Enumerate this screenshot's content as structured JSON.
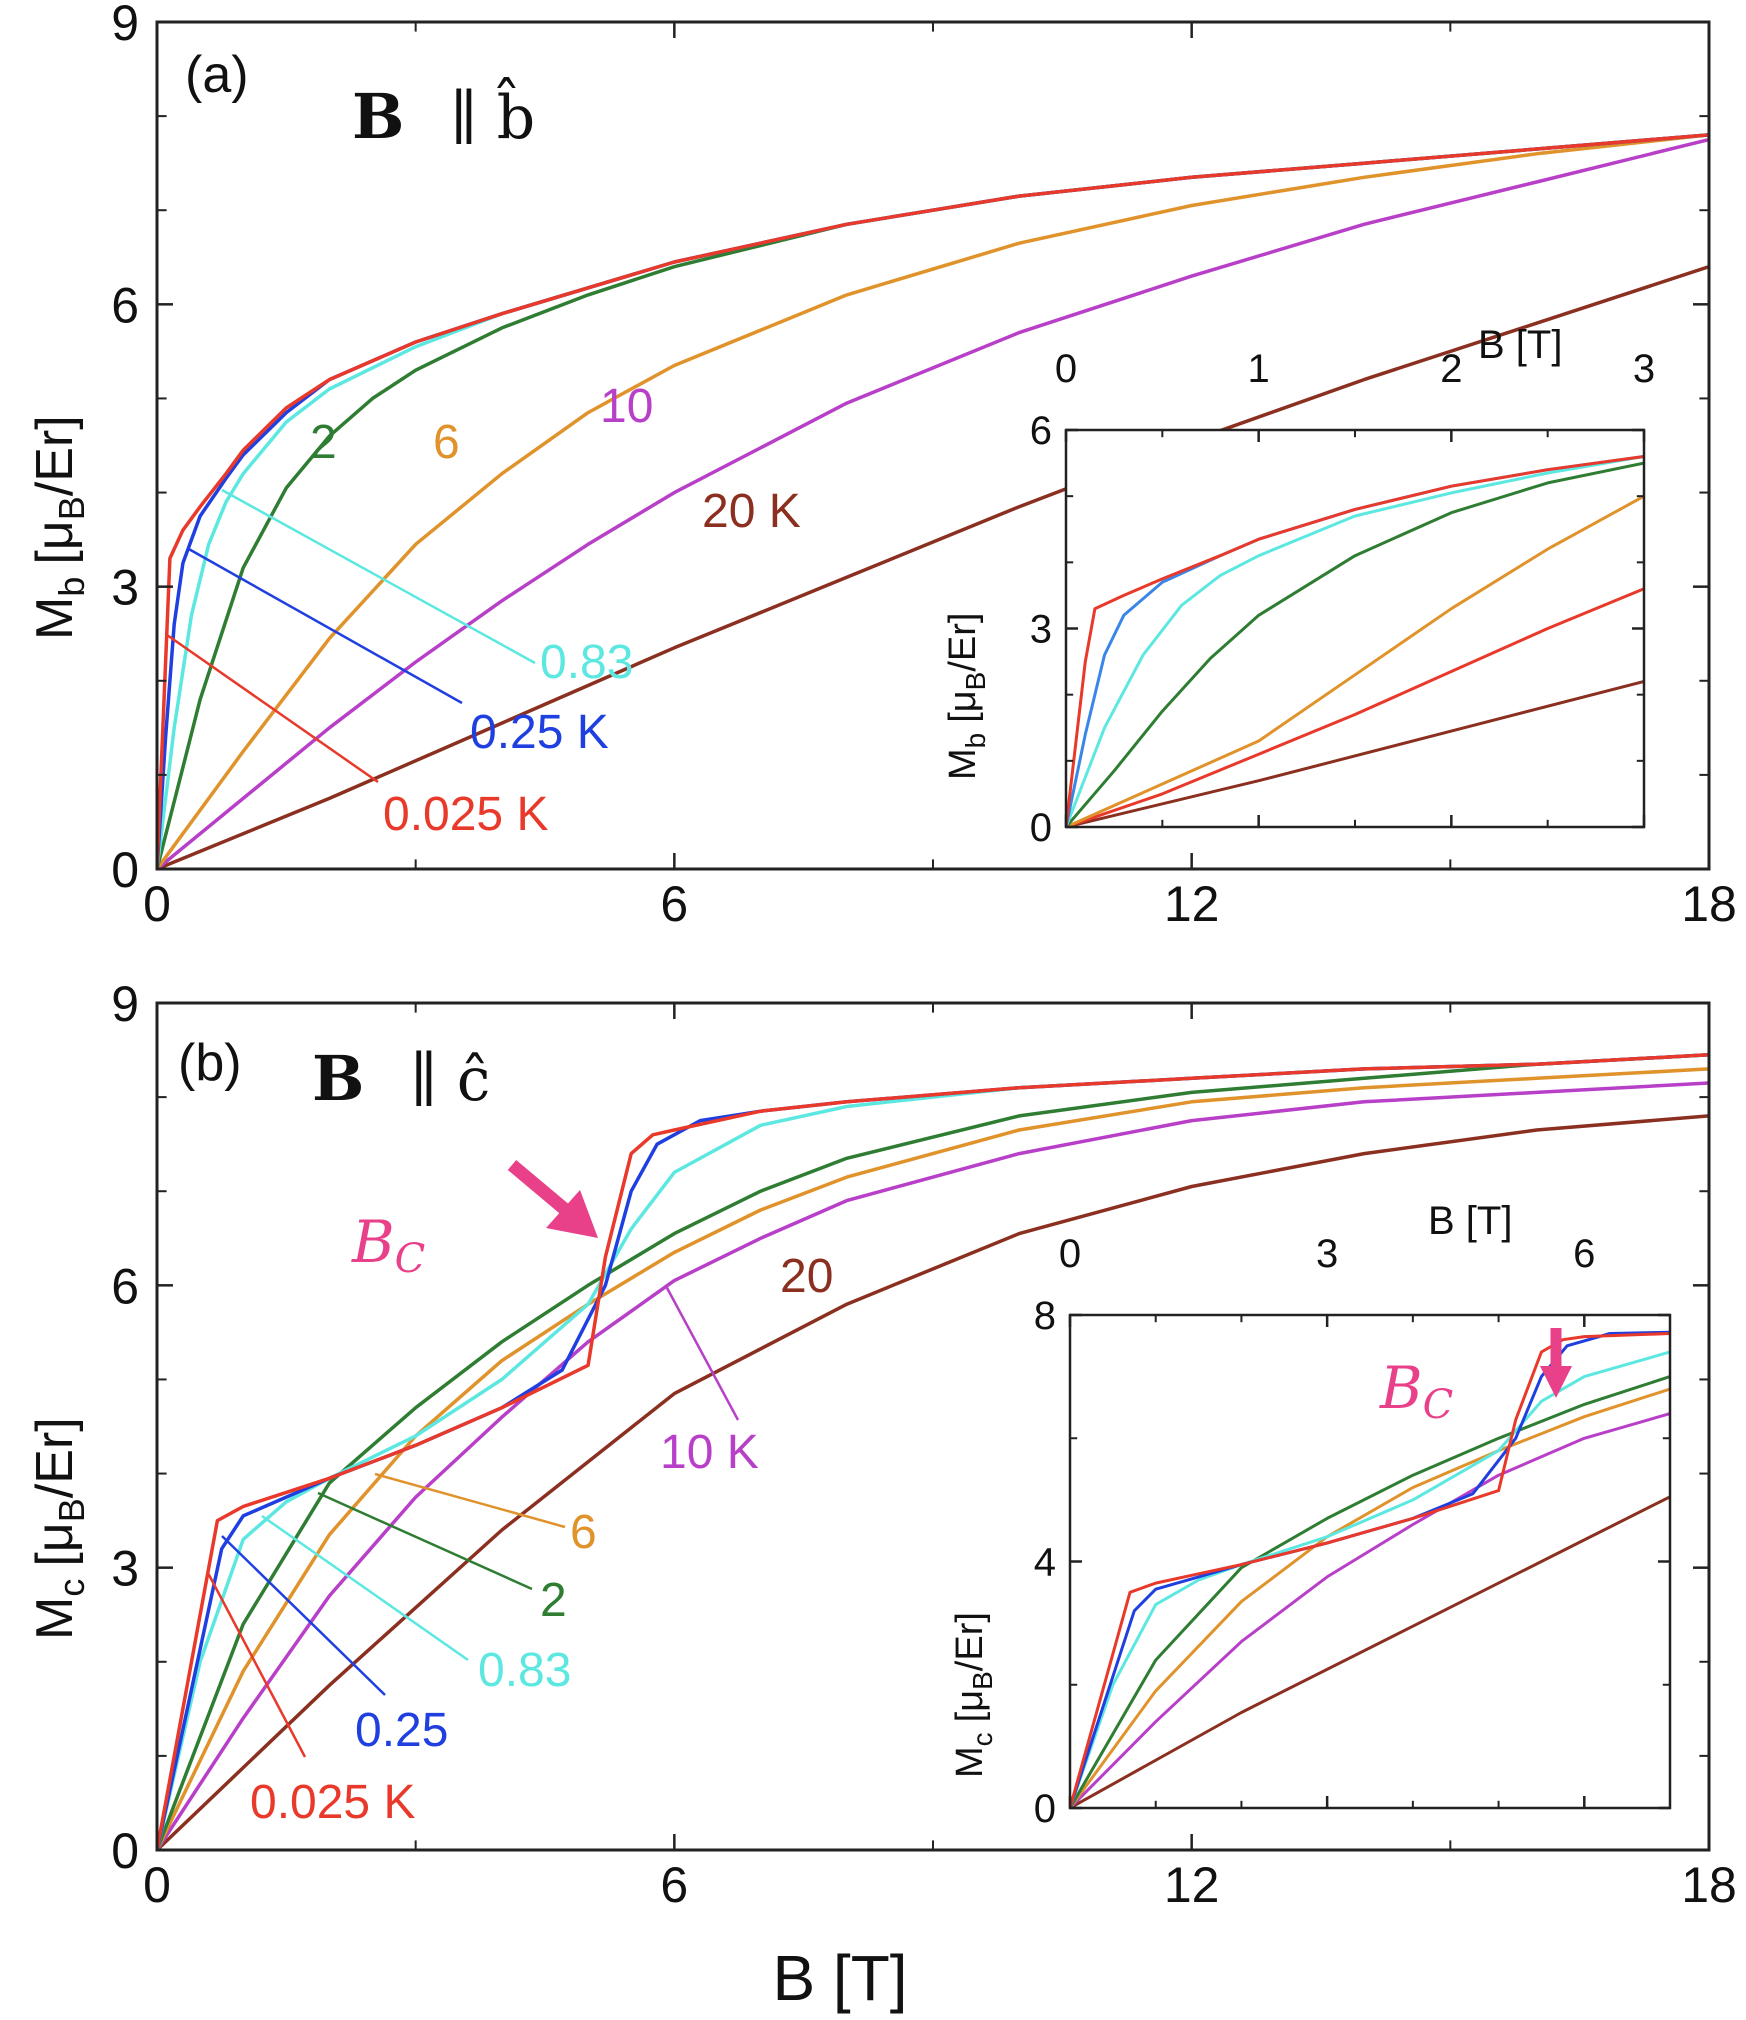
{
  "figure": {
    "x_label": "B [T]",
    "colors": {
      "0.025": "#e8392b",
      "0.25": "#1f3fe0",
      "0.83": "#5ce8e0",
      "2": "#2e7d32",
      "6": "#e0922b",
      "10": "#b83fc8",
      "20": "#8b3020",
      "arrow": "#e8418a"
    }
  },
  "chart_data": [
    {
      "type": "line",
      "panel_label": "(a)",
      "title_bold": "B",
      "title_rest": "∥ b̂",
      "xlabel": "B [T]",
      "ylabel_main": "M",
      "ylabel_sub": "b",
      "ylabel_unit": "[μ",
      "ylabel_unit_sub": "B",
      "ylabel_tail": "/Er]",
      "xlim": [
        0,
        18
      ],
      "ylim": [
        0,
        9
      ],
      "xticks": [
        "0",
        "6",
        "12",
        "18"
      ],
      "yticks": [
        "0",
        "3",
        "6",
        "9"
      ],
      "series": [
        {
          "name": "0.025 K",
          "color": "#e8392b",
          "x": [
            0,
            0.15,
            0.2,
            0.3,
            0.5,
            0.8,
            1,
            1.5,
            2,
            3,
            4,
            6,
            8,
            10,
            12,
            14,
            16,
            18
          ],
          "y": [
            0,
            3.3,
            3.4,
            3.6,
            3.85,
            4.2,
            4.45,
            4.9,
            5.2,
            5.6,
            5.9,
            6.45,
            6.85,
            7.15,
            7.35,
            7.5,
            7.65,
            7.8
          ]
        },
        {
          "name": "0.25 K",
          "color": "#1f3fe0",
          "x": [
            0,
            0.1,
            0.2,
            0.3,
            0.5,
            0.8,
            1,
            1.5,
            2,
            3,
            4,
            6,
            8,
            10,
            12,
            14,
            16,
            18
          ],
          "y": [
            0,
            1.4,
            2.6,
            3.25,
            3.75,
            4.15,
            4.4,
            4.85,
            5.2,
            5.6,
            5.9,
            6.45,
            6.85,
            7.15,
            7.35,
            7.5,
            7.65,
            7.8
          ]
        },
        {
          "name": "0.83",
          "color": "#5ce8e0",
          "x": [
            0,
            0.2,
            0.4,
            0.6,
            0.8,
            1,
            1.5,
            2,
            3,
            4,
            6,
            8,
            10,
            12,
            14,
            16,
            18
          ],
          "y": [
            0,
            1.5,
            2.7,
            3.45,
            3.9,
            4.2,
            4.75,
            5.1,
            5.55,
            5.9,
            6.45,
            6.85,
            7.15,
            7.35,
            7.5,
            7.65,
            7.8
          ]
        },
        {
          "name": "2",
          "color": "#2e7d32",
          "x": [
            0,
            0.25,
            0.5,
            1,
            1.5,
            2,
            2.5,
            3,
            4,
            5,
            6,
            8,
            10,
            12,
            14,
            16,
            18
          ],
          "y": [
            0,
            0.9,
            1.8,
            3.2,
            4.05,
            4.6,
            5.0,
            5.3,
            5.75,
            6.1,
            6.4,
            6.85,
            7.15,
            7.35,
            7.5,
            7.65,
            7.8
          ]
        },
        {
          "name": "6",
          "color": "#e0922b",
          "x": [
            0,
            1,
            2,
            3,
            4,
            5,
            6,
            8,
            10,
            12,
            14,
            16,
            18
          ],
          "y": [
            0,
            1.25,
            2.45,
            3.45,
            4.2,
            4.85,
            5.35,
            6.1,
            6.65,
            7.05,
            7.35,
            7.6,
            7.8
          ]
        },
        {
          "name": "10",
          "color": "#b83fc8",
          "x": [
            0,
            1,
            2,
            3,
            4,
            5,
            6,
            8,
            10,
            12,
            14,
            16,
            18
          ],
          "y": [
            0,
            0.75,
            1.5,
            2.2,
            2.85,
            3.45,
            4.0,
            4.95,
            5.7,
            6.3,
            6.85,
            7.3,
            7.75
          ]
        },
        {
          "name": "20 K",
          "color": "#8b3020",
          "x": [
            0,
            2,
            4,
            6,
            8,
            10,
            12,
            14,
            16,
            18
          ],
          "y": [
            0,
            0.75,
            1.55,
            2.35,
            3.1,
            3.85,
            4.55,
            5.2,
            5.8,
            6.4
          ]
        }
      ],
      "labels": [
        {
          "text": "2",
          "color": "#2e7d32"
        },
        {
          "text": "6",
          "color": "#e0922b"
        },
        {
          "text": "10",
          "color": "#b83fc8"
        },
        {
          "text": "20 K",
          "color": "#8b3020"
        },
        {
          "text": "0.83",
          "color": "#5ce8e0"
        },
        {
          "text": "0.25 K",
          "color": "#1f3fe0"
        },
        {
          "text": "0.025 K",
          "color": "#e8392b"
        }
      ],
      "inset": {
        "xlabel": "B [T]",
        "xlim": [
          0,
          3
        ],
        "ylim": [
          0,
          6
        ],
        "xticks": [
          "0",
          "1",
          "2",
          "3"
        ],
        "yticks": [
          "0",
          "3",
          "6"
        ],
        "series": [
          {
            "name": "0.025 K",
            "color": "#e8392b",
            "x": [
              0,
              0.1,
              0.15,
              0.3,
              0.5,
              0.8,
              1,
              1.5,
              2,
              2.5,
              3
            ],
            "y": [
              0,
              2.5,
              3.3,
              3.5,
              3.75,
              4.1,
              4.35,
              4.8,
              5.15,
              5.4,
              5.6
            ]
          },
          {
            "name": "0.25 K",
            "color": "#3a86e8",
            "x": [
              0,
              0.1,
              0.2,
              0.3,
              0.5,
              0.8,
              1,
              1.5,
              2,
              2.5,
              3
            ],
            "y": [
              0,
              1.4,
              2.6,
              3.2,
              3.7,
              4.1,
              4.35,
              4.8,
              5.15,
              5.4,
              5.6
            ]
          },
          {
            "name": "0.83",
            "color": "#5ce8e0",
            "x": [
              0,
              0.2,
              0.4,
              0.6,
              0.8,
              1,
              1.5,
              2,
              2.5,
              3
            ],
            "y": [
              0,
              1.5,
              2.6,
              3.35,
              3.8,
              4.1,
              4.7,
              5.05,
              5.35,
              5.6
            ]
          },
          {
            "name": "2",
            "color": "#2e7d32",
            "x": [
              0,
              0.25,
              0.5,
              0.75,
              1,
              1.5,
              2,
              2.5,
              3
            ],
            "y": [
              0,
              0.85,
              1.75,
              2.55,
              3.2,
              4.1,
              4.75,
              5.2,
              5.5
            ]
          },
          {
            "name": "6",
            "color": "#e0922b",
            "x": [
              0,
              0.5,
              1,
              1.5,
              2,
              2.5,
              3
            ],
            "y": [
              0,
              0.65,
              1.3,
              2.3,
              3.3,
              4.2,
              5.0
            ]
          },
          {
            "name": "10",
            "color": "#e8392b",
            "x": [
              0,
              0.5,
              1,
              1.5,
              2,
              2.5,
              3
            ],
            "y": [
              0,
              0.5,
              1.1,
              1.7,
              2.35,
              3.0,
              3.6
            ]
          },
          {
            "name": "20 K",
            "color": "#8b3020",
            "x": [
              0,
              1,
              2,
              3
            ],
            "y": [
              0,
              0.7,
              1.45,
              2.2
            ]
          }
        ]
      }
    },
    {
      "type": "line",
      "panel_label": "(b)",
      "title_bold": "B",
      "title_rest": "∥ ĉ",
      "xlabel": "B [T]",
      "ylabel_main": "M",
      "ylabel_sub": "c",
      "ylabel_unit": "[μ",
      "ylabel_unit_sub": "B",
      "ylabel_tail": "/Er]",
      "xlim": [
        0,
        18
      ],
      "ylim": [
        0,
        9
      ],
      "xticks": [
        "0",
        "6",
        "12",
        "18"
      ],
      "yticks": [
        "0",
        "3",
        "6",
        "9"
      ],
      "bc_label": "B",
      "bc_sub": "C",
      "series": [
        {
          "name": "0.025 K",
          "color": "#e8392b",
          "x": [
            0,
            0.7,
            1,
            1.5,
            2,
            3,
            4,
            5,
            5.2,
            5.5,
            5.75,
            6,
            7,
            8,
            10,
            12,
            14,
            16,
            18
          ],
          "y": [
            0,
            3.5,
            3.65,
            3.8,
            3.95,
            4.3,
            4.7,
            5.15,
            6.3,
            7.4,
            7.6,
            7.65,
            7.85,
            7.95,
            8.1,
            8.2,
            8.3,
            8.35,
            8.45
          ]
        },
        {
          "name": "0.25",
          "color": "#1f3fe0",
          "x": [
            0,
            0.75,
            1,
            1.5,
            2,
            3,
            4,
            4.7,
            5.2,
            5.5,
            5.8,
            6.3,
            7,
            8,
            10,
            12,
            14,
            16,
            18
          ],
          "y": [
            0,
            3.2,
            3.55,
            3.75,
            3.95,
            4.3,
            4.7,
            5.1,
            6.0,
            7.0,
            7.5,
            7.75,
            7.85,
            7.95,
            8.1,
            8.2,
            8.3,
            8.35,
            8.45
          ]
        },
        {
          "name": "0.83",
          "color": "#5ce8e0",
          "x": [
            0,
            0.5,
            1,
            1.5,
            2,
            3,
            4,
            5,
            5.5,
            6,
            7,
            8,
            10,
            12,
            14,
            16,
            18
          ],
          "y": [
            0,
            2.0,
            3.3,
            3.7,
            3.95,
            4.4,
            5.0,
            5.8,
            6.6,
            7.2,
            7.7,
            7.9,
            8.1,
            8.2,
            8.3,
            8.35,
            8.45
          ]
        },
        {
          "name": "2",
          "color": "#2e7d32",
          "x": [
            0,
            1,
            2,
            3,
            4,
            5,
            6,
            7,
            8,
            10,
            12,
            14,
            16,
            18
          ],
          "y": [
            0,
            2.4,
            3.9,
            4.7,
            5.4,
            6.0,
            6.55,
            7.0,
            7.35,
            7.8,
            8.05,
            8.2,
            8.35,
            8.45
          ]
        },
        {
          "name": "6",
          "color": "#e0922b",
          "x": [
            0,
            1,
            2,
            3,
            4,
            5,
            6,
            7,
            8,
            10,
            12,
            14,
            16,
            18
          ],
          "y": [
            0,
            1.9,
            3.35,
            4.4,
            5.2,
            5.8,
            6.35,
            6.8,
            7.15,
            7.65,
            7.95,
            8.1,
            8.2,
            8.3
          ]
        },
        {
          "name": "10 K",
          "color": "#b83fc8",
          "x": [
            0,
            1,
            2,
            3,
            4,
            5,
            6,
            7,
            8,
            10,
            12,
            14,
            16,
            18
          ],
          "y": [
            0,
            1.4,
            2.7,
            3.75,
            4.6,
            5.4,
            6.05,
            6.5,
            6.9,
            7.4,
            7.75,
            7.95,
            8.05,
            8.15
          ]
        },
        {
          "name": "20",
          "color": "#8b3020",
          "x": [
            0,
            2,
            4,
            6,
            8,
            10,
            12,
            14,
            16,
            18
          ],
          "y": [
            0,
            1.75,
            3.4,
            4.85,
            5.8,
            6.55,
            7.05,
            7.4,
            7.65,
            7.8
          ]
        }
      ],
      "labels": [
        {
          "text": "20",
          "color": "#8b3020"
        },
        {
          "text": "10 K",
          "color": "#b83fc8"
        },
        {
          "text": "6",
          "color": "#e0922b"
        },
        {
          "text": "2",
          "color": "#2e7d32"
        },
        {
          "text": "0.83",
          "color": "#5ce8e0"
        },
        {
          "text": "0.25",
          "color": "#1f3fe0"
        },
        {
          "text": "0.025 K",
          "color": "#e8392b"
        }
      ],
      "inset": {
        "xlabel": "B [T]",
        "xlim": [
          0,
          7
        ],
        "ylim": [
          0,
          8
        ],
        "xticks": [
          "0",
          "3",
          "6"
        ],
        "yticks": [
          "0",
          "4",
          "8"
        ],
        "series": [
          {
            "name": "0.025 K",
            "color": "#e8392b",
            "x": [
              0,
              0.7,
              1,
              1.5,
              2,
              3,
              4,
              5,
              5.2,
              5.5,
              5.75,
              6,
              7
            ],
            "y": [
              0,
              3.5,
              3.65,
              3.8,
              3.95,
              4.3,
              4.7,
              5.15,
              6.3,
              7.4,
              7.6,
              7.65,
              7.7
            ]
          },
          {
            "name": "0.25",
            "color": "#1f3fe0",
            "x": [
              0,
              0.75,
              1,
              1.5,
              2,
              3,
              4,
              4.7,
              5.2,
              5.5,
              5.8,
              6.3,
              7
            ],
            "y": [
              0,
              3.2,
              3.55,
              3.75,
              3.95,
              4.3,
              4.7,
              5.1,
              6.0,
              7.0,
              7.5,
              7.7,
              7.72
            ]
          },
          {
            "name": "0.83",
            "color": "#5ce8e0",
            "x": [
              0,
              0.5,
              1,
              1.5,
              2,
              3,
              4,
              5,
              5.5,
              6,
              7
            ],
            "y": [
              0,
              2.0,
              3.3,
              3.7,
              3.95,
              4.4,
              5.0,
              5.8,
              6.6,
              7.0,
              7.4
            ]
          },
          {
            "name": "2",
            "color": "#2e7d32",
            "x": [
              0,
              1,
              2,
              3,
              4,
              5,
              6,
              7
            ],
            "y": [
              0,
              2.4,
              3.9,
              4.7,
              5.4,
              6.0,
              6.55,
              7.0
            ]
          },
          {
            "name": "6",
            "color": "#e0922b",
            "x": [
              0,
              1,
              2,
              3,
              4,
              5,
              6,
              7
            ],
            "y": [
              0,
              1.9,
              3.35,
              4.4,
              5.2,
              5.8,
              6.35,
              6.8
            ]
          },
          {
            "name": "10 K",
            "color": "#b83fc8",
            "x": [
              0,
              1,
              2,
              3,
              4,
              5,
              6,
              7
            ],
            "y": [
              0,
              1.4,
              2.7,
              3.75,
              4.6,
              5.4,
              6.0,
              6.4
            ]
          },
          {
            "name": "20",
            "color": "#8b3020",
            "x": [
              0,
              2,
              4,
              6,
              7
            ],
            "y": [
              0,
              1.55,
              2.95,
              4.35,
              5.05
            ]
          }
        ]
      }
    }
  ]
}
